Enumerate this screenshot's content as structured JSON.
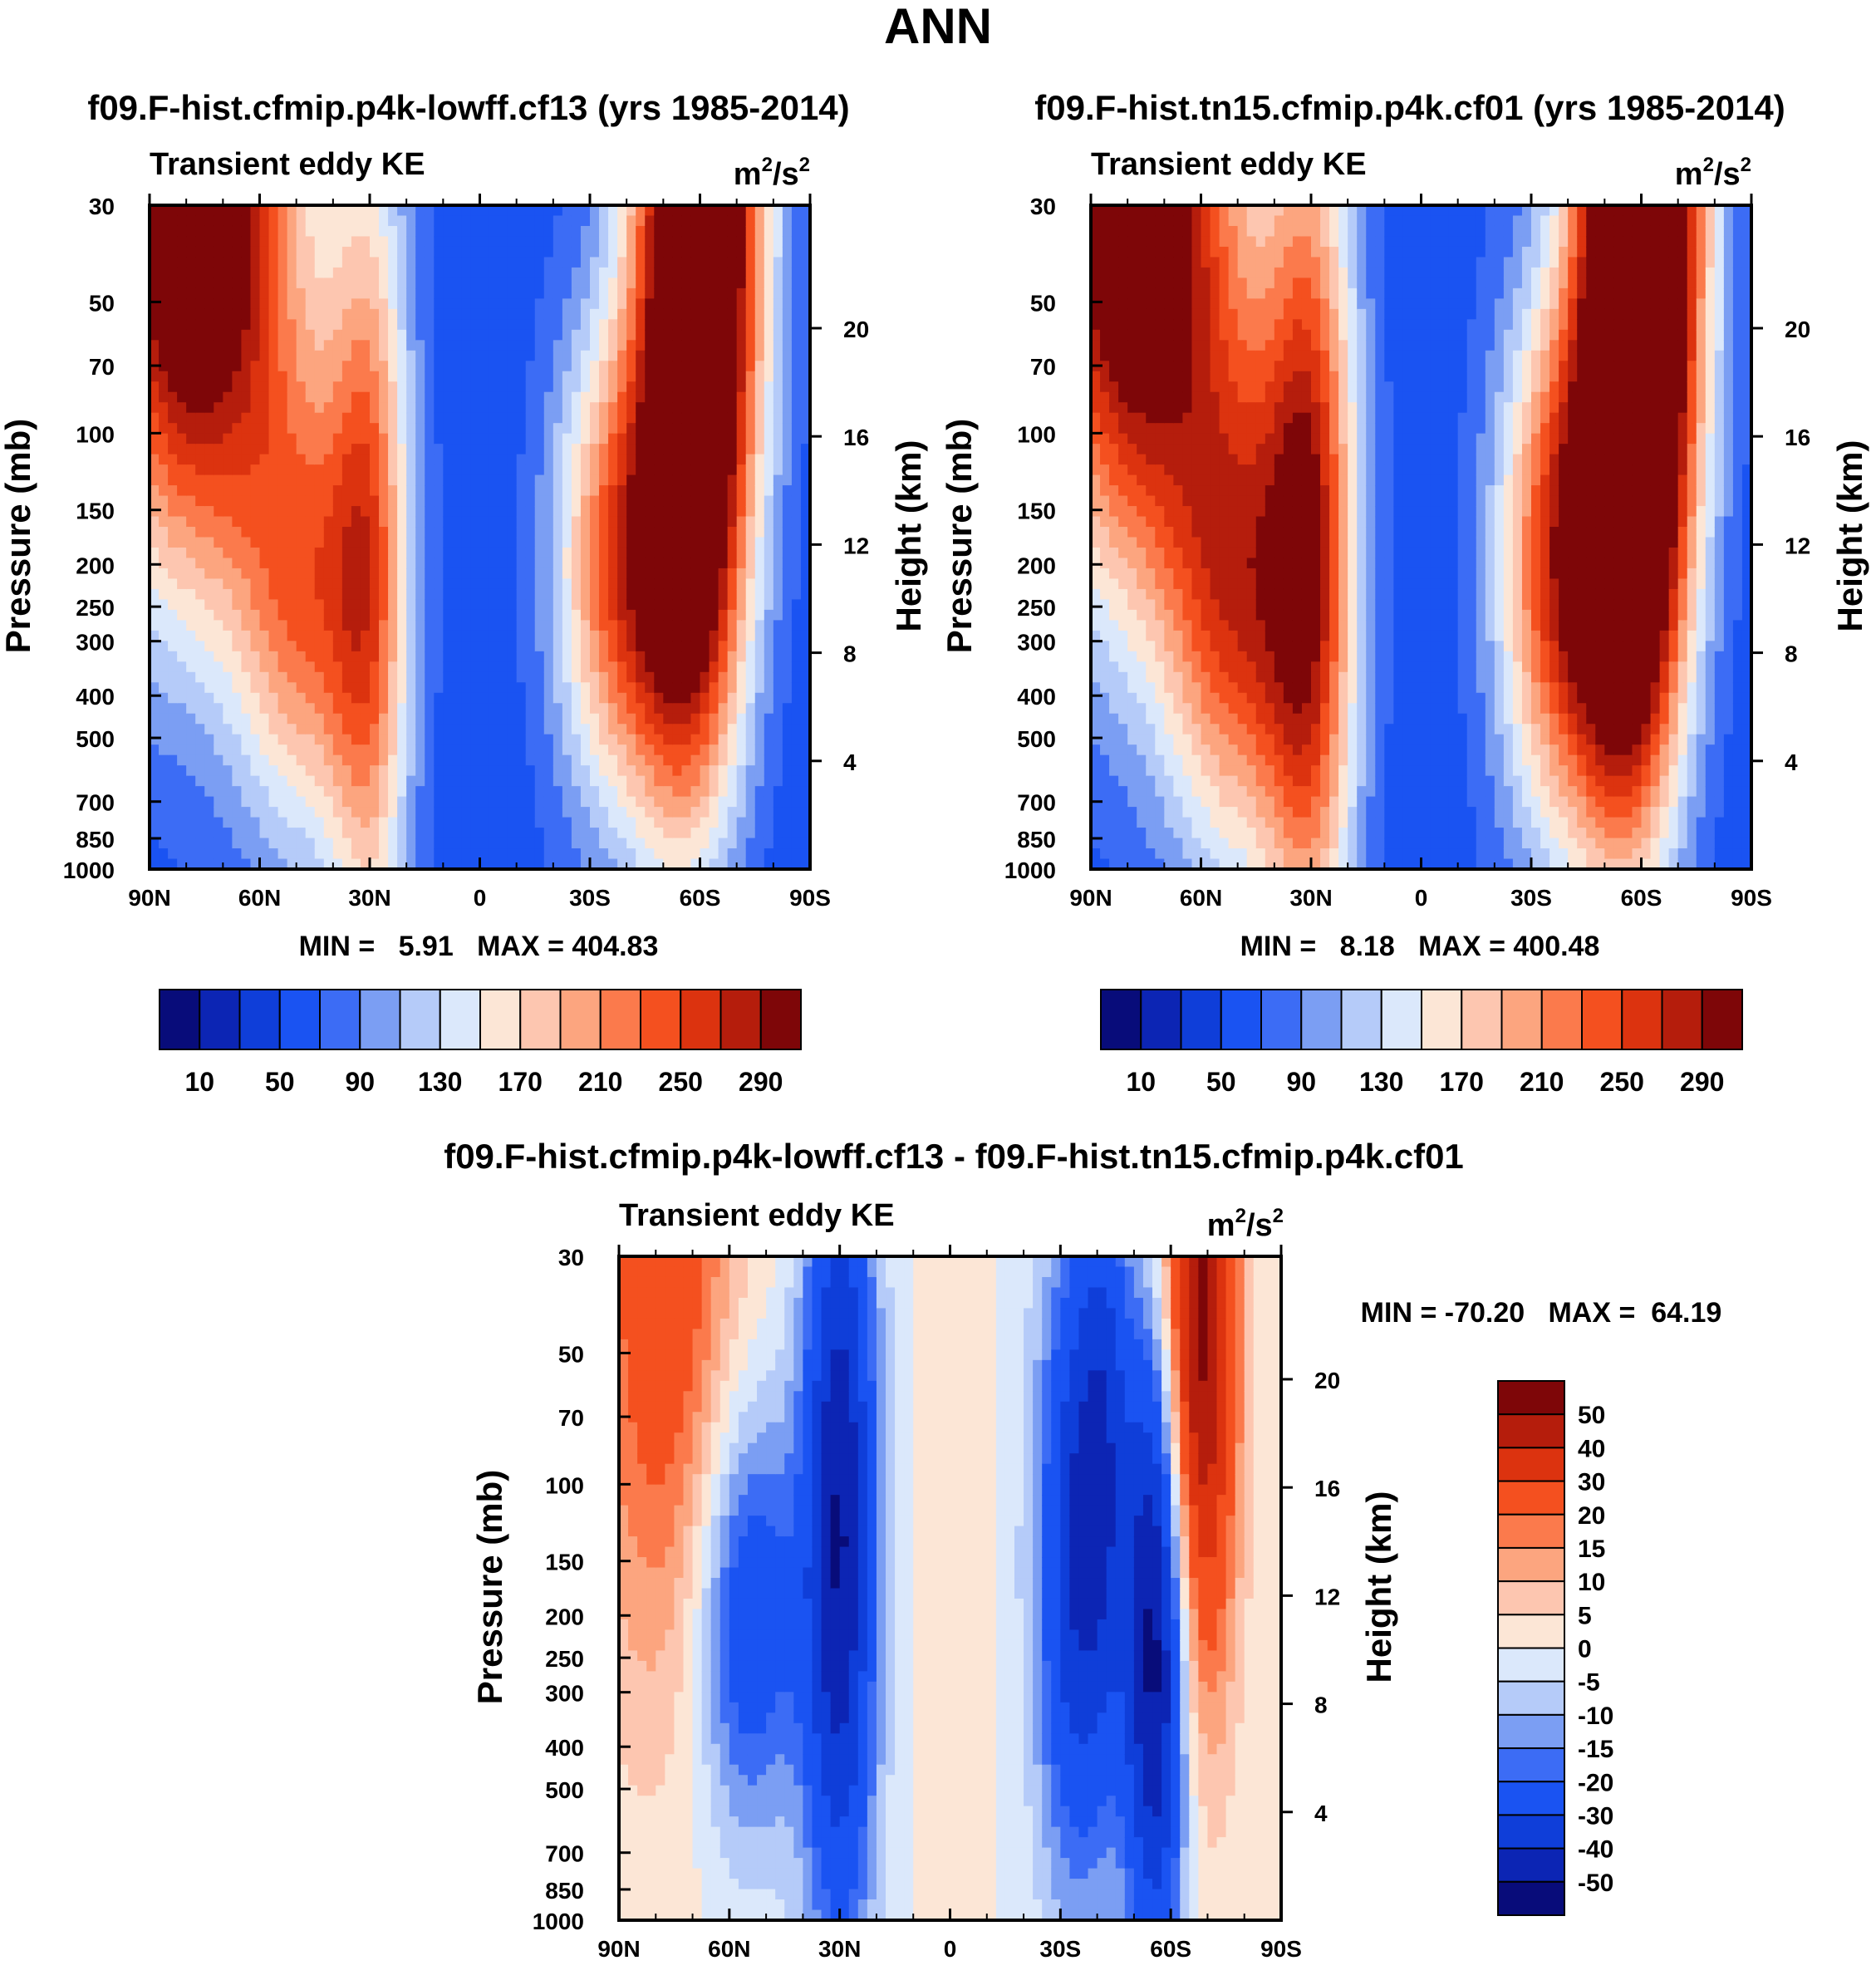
{
  "title": "ANN",
  "colors": {
    "abs": [
      "#080c7a",
      "#0c25b4",
      "#0f3ed9",
      "#1a53f2",
      "#3c6cf5",
      "#7b9ef3",
      "#b5cbf9",
      "#dbe8fb",
      "#fce6d6",
      "#fdc6b0",
      "#fca57f",
      "#fb7a4c",
      "#f4501f",
      "#dc330f",
      "#b51d0c",
      "#7e0608"
    ],
    "diff": [
      "#080c7a",
      "#0c25b4",
      "#0f3ed9",
      "#1a53f2",
      "#3c6cf5",
      "#7b9ef3",
      "#b5cbf9",
      "#dbe8fb",
      "#fce6d6",
      "#fdc6b0",
      "#fca57f",
      "#fb7a4c",
      "#f4501f",
      "#dc330f",
      "#b51d0c",
      "#7e0608"
    ]
  },
  "panels": [
    {
      "title": "f09.F-hist.cfmip.p4k-lowff.cf13 (yrs 1985-2014)",
      "left_label": "Transient eddy KE",
      "stats": "MIN =   5.91   MAX = 404.83",
      "kind": "abs",
      "blobs": [
        {
          "lat": 78,
          "p": 30,
          "wlat": 20,
          "wz": 1.4,
          "amp": 310
        },
        {
          "lat": -60,
          "p": 30,
          "wlat": 12,
          "wz": 1.5,
          "amp": 360
        },
        {
          "lat": 30,
          "p": 200,
          "wlat": 8,
          "wz": 1.6,
          "amp": 150
        },
        {
          "lat": 48,
          "p": 250,
          "wlat": 13,
          "wz": 0.9,
          "amp": 140
        },
        {
          "lat": -35,
          "p": 200,
          "wlat": 11,
          "wz": 0.9,
          "amp": 145
        },
        {
          "lat": -55,
          "p": 260,
          "wlat": 11,
          "wz": 1.0,
          "amp": 160
        }
      ]
    },
    {
      "title": "f09.F-hist.tn15.cfmip.p4k.cf01 (yrs 1985-2014)",
      "left_label": "Transient eddy KE",
      "stats": "MIN =   8.18   MAX = 400.48",
      "kind": "abs",
      "blobs": [
        {
          "lat": 78,
          "p": 30,
          "wlat": 20,
          "wz": 1.4,
          "amp": 300
        },
        {
          "lat": -60,
          "p": 30,
          "wlat": 12,
          "wz": 1.5,
          "amp": 380
        },
        {
          "lat": 30,
          "p": 180,
          "wlat": 9,
          "wz": 1.7,
          "amp": 190
        },
        {
          "lat": 50,
          "p": 250,
          "wlat": 14,
          "wz": 1.0,
          "amp": 170
        },
        {
          "lat": -35,
          "p": 200,
          "wlat": 11,
          "wz": 1.0,
          "amp": 160
        },
        {
          "lat": -55,
          "p": 250,
          "wlat": 11,
          "wz": 1.1,
          "amp": 210
        }
      ]
    },
    {
      "title": "f09.F-hist.cfmip.p4k-lowff.cf13 - f09.F-hist.tn15.cfmip.p4k.cf01",
      "left_label": "Transient eddy KE",
      "stats": "MIN = -70.20   MAX =  64.19",
      "kind": "diff",
      "blobs": [
        {
          "lat": 78,
          "p": 30,
          "wlat": 14,
          "wz": 1.6,
          "amp": 28
        },
        {
          "lat": -68,
          "p": 40,
          "wlat": 7,
          "wz": 1.4,
          "amp": 55
        },
        {
          "lat": 30,
          "p": 130,
          "wlat": 7,
          "wz": 1.5,
          "amp": -50
        },
        {
          "lat": 55,
          "p": 200,
          "wlat": 10,
          "wz": 0.8,
          "amp": -30
        },
        {
          "lat": -35,
          "p": 150,
          "wlat": 8,
          "wz": 1.2,
          "amp": -40
        },
        {
          "lat": -56,
          "p": 230,
          "wlat": 6,
          "wz": 1.2,
          "amp": -55
        },
        {
          "lat": -42,
          "p": 60,
          "wlat": 5,
          "wz": 1.0,
          "amp": -18
        },
        {
          "lat": 0,
          "p": 300,
          "wlat": 6,
          "wz": 1.6,
          "amp": 4
        }
      ]
    }
  ],
  "axes": {
    "units_base": "m",
    "units_sup1": "2",
    "units_mid": "/s",
    "units_sup2": "2",
    "ylabel_left": "Pressure (mb)",
    "ylabel_right": "Height (km)",
    "pressure_ticks": [
      "30",
      "50",
      "70",
      "100",
      "150",
      "200",
      "250",
      "300",
      "400",
      "500",
      "700",
      "850",
      "1000"
    ],
    "height_ticks": [
      "20",
      "16",
      "12",
      "8",
      "4"
    ],
    "lat_ticks": [
      "90N",
      "60N",
      "30N",
      "0",
      "30S",
      "60S",
      "90S"
    ]
  },
  "chart_data": [
    {
      "type": "heatmap",
      "title": "f09.F-hist.cfmip.p4k-lowff.cf13 (yrs 1985-2014)",
      "xlabel": "",
      "ylabel": "Pressure (mb)",
      "x_ticks": [
        "90N",
        "60N",
        "30N",
        "0",
        "30S",
        "60S",
        "90S"
      ],
      "y_ticks": [
        30,
        50,
        70,
        100,
        150,
        200,
        250,
        300,
        400,
        500,
        700,
        850,
        1000
      ],
      "y_scale": "log",
      "ylim": [
        1000,
        30
      ],
      "colorbar_levels": [
        10,
        30,
        50,
        70,
        90,
        110,
        130,
        150,
        170,
        190,
        210,
        230,
        250,
        270,
        290
      ],
      "colorbar_labels": [
        "10",
        "50",
        "90",
        "130",
        "170",
        "210",
        "250",
        "290"
      ],
      "min": 5.91,
      "max": 404.83
    },
    {
      "type": "heatmap",
      "title": "f09.F-hist.tn15.cfmip.p4k.cf01 (yrs 1985-2014)",
      "xlabel": "",
      "ylabel": "Pressure (mb)",
      "x_ticks": [
        "90N",
        "60N",
        "30N",
        "0",
        "30S",
        "60S",
        "90S"
      ],
      "y_ticks": [
        30,
        50,
        70,
        100,
        150,
        200,
        250,
        300,
        400,
        500,
        700,
        850,
        1000
      ],
      "y_scale": "log",
      "ylim": [
        1000,
        30
      ],
      "colorbar_levels": [
        10,
        30,
        50,
        70,
        90,
        110,
        130,
        150,
        170,
        190,
        210,
        230,
        250,
        270,
        290
      ],
      "colorbar_labels": [
        "10",
        "50",
        "90",
        "130",
        "170",
        "210",
        "250",
        "290"
      ],
      "min": 8.18,
      "max": 400.48
    },
    {
      "type": "heatmap",
      "title": "f09.F-hist.cfmip.p4k-lowff.cf13 - f09.F-hist.tn15.cfmip.p4k.cf01",
      "xlabel": "",
      "ylabel": "Pressure (mb)",
      "x_ticks": [
        "90N",
        "60N",
        "30N",
        "0",
        "30S",
        "60S",
        "90S"
      ],
      "y_ticks": [
        30,
        50,
        70,
        100,
        150,
        200,
        250,
        300,
        400,
        500,
        700,
        850,
        1000
      ],
      "y_scale": "log",
      "ylim": [
        1000,
        30
      ],
      "colorbar_levels": [
        -50,
        -40,
        -30,
        -20,
        -15,
        -10,
        -5,
        0,
        5,
        10,
        15,
        20,
        30,
        40,
        50
      ],
      "colorbar_labels": [
        "50",
        "40",
        "30",
        "20",
        "15",
        "10",
        "5",
        "0",
        "-5",
        "-10",
        "-15",
        "-20",
        "-30",
        "-40",
        "-50"
      ],
      "min": -70.2,
      "max": 64.19
    }
  ]
}
